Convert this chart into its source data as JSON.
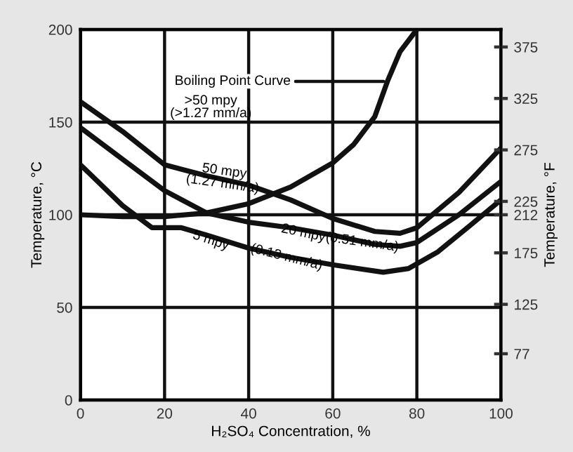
{
  "chart_data": {
    "type": "line",
    "xlabel": "H₂SO₄ Concentration, %",
    "ylabel": "Temperature, °C",
    "y2label": "Temperature, °F",
    "xlim": [
      0,
      100
    ],
    "xticks": [
      0,
      20,
      40,
      60,
      80,
      100
    ],
    "ylim": [
      0,
      200
    ],
    "yticks": [
      0,
      50,
      100,
      150,
      200
    ],
    "y2lim": [
      32,
      392
    ],
    "y2ticks": [
      77,
      125,
      175,
      212,
      225,
      275,
      325,
      375
    ],
    "grid": true,
    "line_style": "solid",
    "marker": "none",
    "series": [
      {
        "color": "#111111",
        "x": [
          0,
          10,
          20,
          30,
          40,
          50,
          60,
          65,
          70,
          73,
          76,
          80
        ],
        "values": [
          100,
          99,
          99,
          101,
          106,
          115,
          128,
          138,
          153,
          172,
          188,
          200
        ]
      },
      {
        "color": "#111111",
        "x": [
          0,
          10,
          20,
          30,
          40,
          50,
          60,
          70,
          76,
          80,
          90,
          100
        ],
        "values": [
          161,
          145,
          127,
          121,
          116,
          108,
          98,
          91,
          90,
          93,
          112,
          136
        ]
      },
      {
        "color": "#111111",
        "x": [
          0,
          10,
          20,
          30,
          40,
          50,
          60,
          70,
          76,
          80,
          90,
          100
        ],
        "values": [
          147,
          130,
          113,
          101,
          96,
          93,
          89,
          84,
          83,
          85,
          100,
          118
        ]
      },
      {
        "color": "#111111",
        "x": [
          0,
          10,
          17,
          24,
          30,
          40,
          50,
          60,
          72,
          78,
          85,
          92,
          100
        ],
        "values": [
          127,
          105,
          93,
          93,
          89,
          82,
          77,
          73,
          69,
          71,
          80,
          93,
          108
        ]
      }
    ],
    "annotations": [
      {
        "text": "Boiling Point Curve",
        "x": 73,
        "y": 172
      },
      ">50 mpy\n(>1.27 mm/a)",
      {
        "text": "50 mpy\n(1.27 mm/a)",
        "x": 34,
        "y": 120
      },
      {
        "text": "20 mpy",
        "x": 53,
        "y": 90
      },
      {
        "text": "(0.51 mm/a)",
        "x": 67,
        "y": 85
      },
      {
        "text": "5 mpy",
        "x": 31,
        "y": 86
      },
      {
        "text": "(0.13 mm/a)",
        "x": 49,
        "y": 77
      }
    ]
  }
}
